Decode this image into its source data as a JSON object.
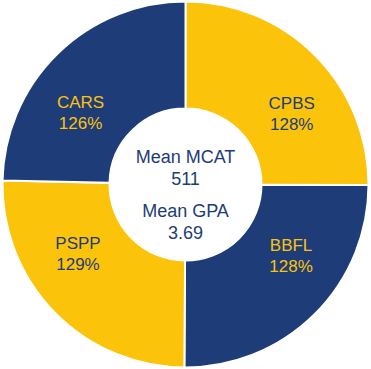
{
  "chart_data": {
    "type": "donut",
    "categories": [
      "CPBS",
      "BBFL",
      "PSPP",
      "CARS"
    ],
    "values": [
      128,
      128,
      129,
      126
    ],
    "value_labels": [
      "128%",
      "128%",
      "129%",
      "126%"
    ],
    "colors": [
      "#fcc30b",
      "#1d3c78",
      "#fcc30b",
      "#1d3c78"
    ],
    "annotations": [
      {
        "label": "Mean MCAT",
        "value": 511
      },
      {
        "label": "Mean GPA",
        "value": 3.69
      }
    ]
  }
}
